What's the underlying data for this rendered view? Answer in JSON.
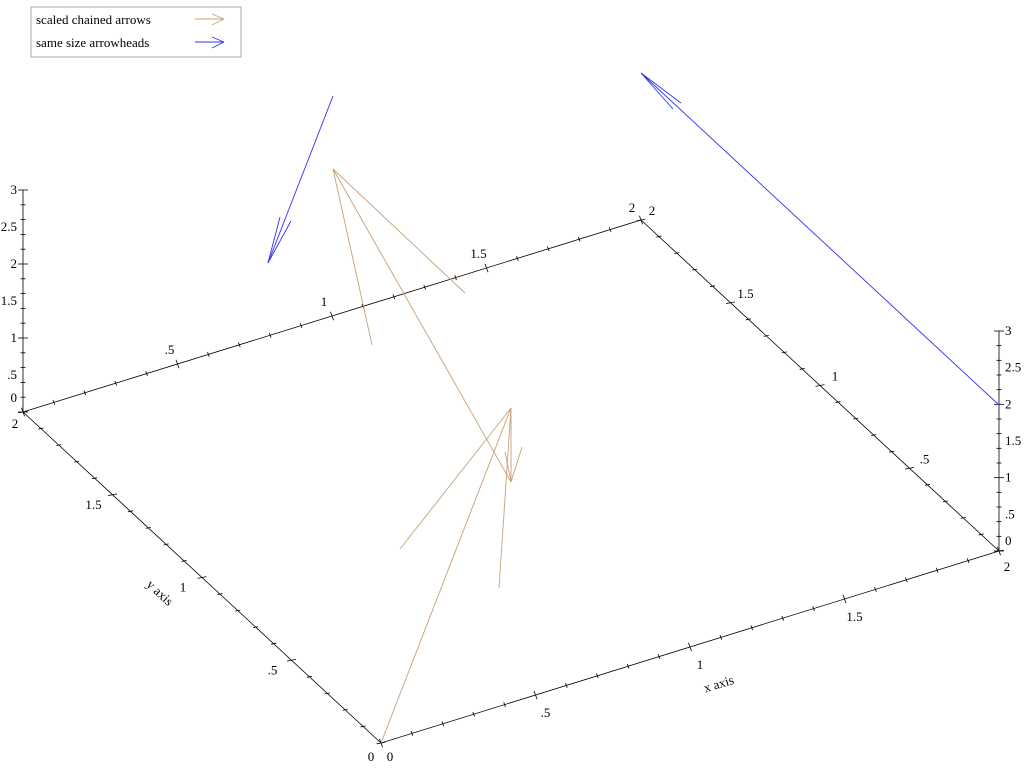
{
  "chart_data": {
    "type": "3d-arrows",
    "title": "",
    "xlabel": "x axis",
    "ylabel": "y axis",
    "zlabel": "",
    "xlim": [
      0,
      2
    ],
    "ylim": [
      0,
      2
    ],
    "zlim": [
      0,
      3
    ],
    "x_ticks": [
      "0",
      ".5",
      "1",
      "1.5",
      "2"
    ],
    "y_ticks": [
      "0",
      ".5",
      "1",
      "1.5",
      "2"
    ],
    "z_ticks": [
      "0",
      ".5",
      "1",
      "1.5",
      "2",
      "2.5",
      "3"
    ],
    "legend_position": "top-left",
    "series": [
      {
        "name": "scaled chained arrows",
        "color": "#c8a079"
      },
      {
        "name": "same size arrowheads",
        "color": "#3333ee"
      }
    ]
  }
}
